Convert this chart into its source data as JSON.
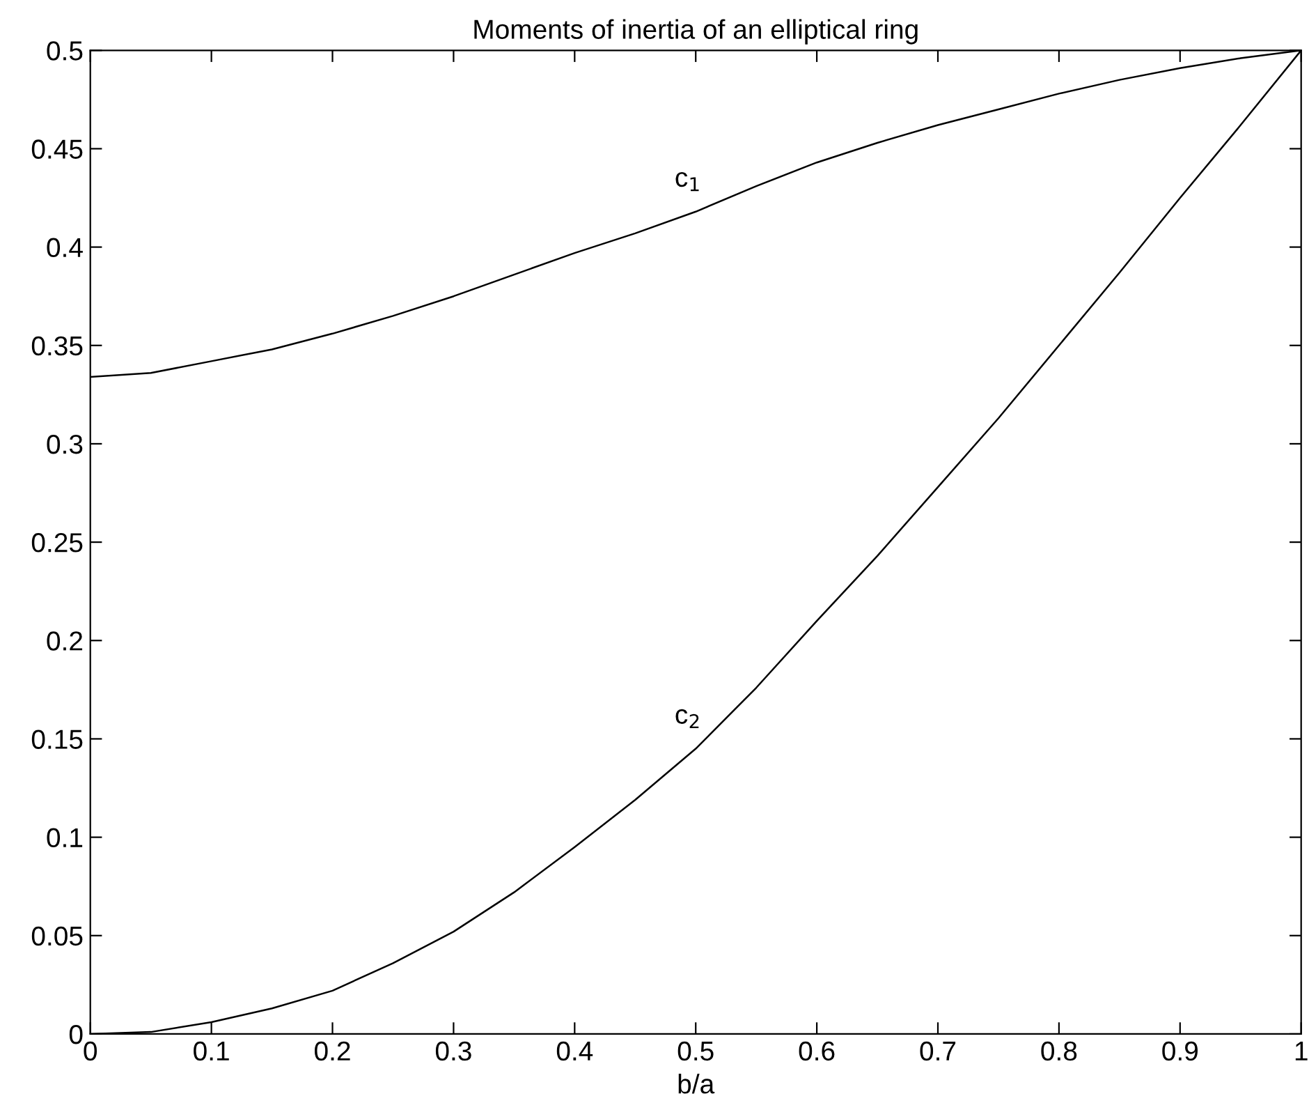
{
  "chart_data": {
    "type": "line",
    "title": "Moments of inertia of an elliptical ring",
    "xlabel": "b/a",
    "x": [
      0,
      0.05,
      0.1,
      0.15,
      0.2,
      0.25,
      0.3,
      0.35,
      0.4,
      0.45,
      0.5,
      0.55,
      0.6,
      0.65,
      0.7,
      0.75,
      0.8,
      0.85,
      0.9,
      0.95,
      1
    ],
    "series": [
      {
        "name": "c$_{1}$",
        "color": "#000000",
        "values": [
          0.334,
          0.336,
          0.342,
          0.348,
          0.356,
          0.365,
          0.375,
          0.386,
          0.397,
          0.407,
          0.418,
          0.431,
          0.443,
          0.453,
          0.462,
          0.47,
          0.478,
          0.485,
          0.491,
          0.496,
          0.5
        ]
      },
      {
        "name": "c$_{2}$",
        "color": "#000000",
        "values": [
          0,
          0.001,
          0.006,
          0.013,
          0.022,
          0.036,
          0.052,
          0.072,
          0.095,
          0.119,
          0.145,
          0.176,
          0.21,
          0.243,
          0.278,
          0.313,
          0.35,
          0.387,
          0.425,
          0.462,
          0.5
        ]
      }
    ],
    "xlim": [
      0,
      1
    ],
    "ylim": [
      0,
      0.5
    ],
    "xticks": [
      0,
      0.1,
      0.2,
      0.3,
      0.4,
      0.5,
      0.6,
      0.7,
      0.8,
      0.9,
      1
    ],
    "yticks": [
      0,
      0.05,
      0.1,
      0.15,
      0.2,
      0.25,
      0.3,
      0.35,
      0.4,
      0.45,
      0.5
    ],
    "grid": false,
    "legend": false,
    "marker": "none",
    "line_style": "solid"
  }
}
